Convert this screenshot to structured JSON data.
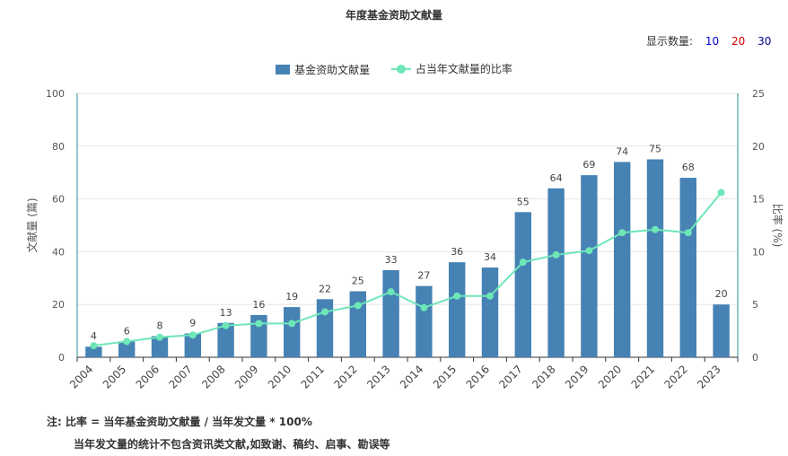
{
  "title": "年度基金资助文献量",
  "display_count": {
    "label": "显示数量:",
    "options": [
      {
        "label": "10",
        "color": "#0000cc"
      },
      {
        "label": "20",
        "color": "#cc0000"
      },
      {
        "label": "30",
        "color": "#000088"
      }
    ]
  },
  "legend": {
    "bar_label": "基金资助文献量",
    "line_label": "占当年文献量的比率"
  },
  "note": {
    "prefix": "注:",
    "line1": "比率 = 当年基金资助文献量 / 当年发文量 * 100%",
    "line2": "当年发文量的统计不包含资讯类文献,如致谢、稿约、启事、勘误等"
  },
  "colors": {
    "bar": "#4682b4",
    "line": "#6ee7b7",
    "axis": "#2e8b9a",
    "grid": "#e6e6e6"
  },
  "chart_data": {
    "type": "bar",
    "categories": [
      "2004",
      "2005",
      "2006",
      "2007",
      "2008",
      "2009",
      "2010",
      "2011",
      "2012",
      "2013",
      "2014",
      "2015",
      "2016",
      "2017",
      "2018",
      "2019",
      "2020",
      "2021",
      "2022",
      "2023"
    ],
    "series": [
      {
        "name": "基金资助文献量",
        "type": "bar",
        "axis": "left",
        "values": [
          4,
          6,
          8,
          9,
          13,
          16,
          19,
          22,
          25,
          33,
          27,
          36,
          34,
          55,
          64,
          69,
          74,
          75,
          68,
          20
        ]
      },
      {
        "name": "占当年文献量的比率",
        "type": "line",
        "axis": "right",
        "values": [
          1.1,
          1.5,
          1.9,
          2.1,
          3.0,
          3.2,
          3.2,
          4.3,
          4.9,
          6.2,
          4.7,
          5.8,
          5.8,
          9.0,
          9.7,
          10.1,
          11.8,
          12.1,
          11.8,
          15.6
        ]
      }
    ],
    "ylabel_left": "文献量 (篇)",
    "ylabel_right": "比率 (%)",
    "ylim_left": [
      0,
      100
    ],
    "ylim_right": [
      0,
      25
    ],
    "yticks_left": [
      "0",
      "20",
      "40",
      "60",
      "80",
      "100"
    ],
    "yticks_right": [
      "0",
      "5",
      "10",
      "15",
      "20",
      "25"
    ],
    "grid": true,
    "legend_position": "top-center"
  }
}
